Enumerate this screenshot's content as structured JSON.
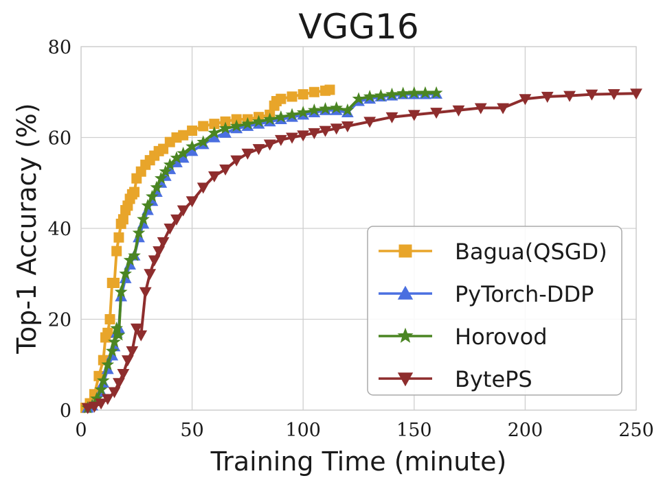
{
  "chart_data": {
    "type": "line",
    "title": "VGG16",
    "xlabel": "Training Time (minute)",
    "ylabel": "Top-1 Accuracy (%)",
    "xlim": [
      0,
      250
    ],
    "ylim": [
      0,
      80
    ],
    "xticks": [
      0,
      50,
      100,
      150,
      200,
      250
    ],
    "yticks": [
      0,
      20,
      40,
      60,
      80
    ],
    "grid": true,
    "legend_position": "lower-right",
    "series": [
      {
        "name": "Bagua(QSGD)",
        "color": "#E8A52A",
        "marker": "square",
        "x": [
          2,
          4,
          6,
          8,
          10,
          11,
          12,
          13,
          14,
          15,
          16,
          17,
          18,
          19,
          20,
          21,
          22,
          23,
          24,
          25,
          27,
          29,
          31,
          33,
          35,
          37,
          40,
          43,
          46,
          50,
          55,
          60,
          65,
          70,
          75,
          80,
          85,
          87,
          88,
          90,
          95,
          100,
          105,
          110,
          112
        ],
        "y": [
          0.5,
          1.5,
          3.5,
          7.5,
          11,
          16,
          17,
          20,
          28,
          28,
          35,
          38,
          41,
          42,
          44,
          45,
          46.5,
          47.5,
          48,
          51,
          52.5,
          54,
          55,
          56,
          57,
          57.5,
          59,
          60,
          60.5,
          61.5,
          62.5,
          63,
          63.5,
          64,
          64,
          64.5,
          65,
          67,
          68,
          68.5,
          69,
          69.5,
          70,
          70.3,
          70.5
        ]
      },
      {
        "name": "PyTorch-DDP",
        "color": "#4A6FE0",
        "marker": "triangle-up",
        "x": [
          3,
          5,
          7,
          9,
          10,
          12,
          14,
          15,
          16,
          17,
          18,
          20,
          22,
          24,
          26,
          28,
          30,
          32,
          34,
          36,
          38,
          40,
          43,
          46,
          50,
          55,
          60,
          65,
          70,
          75,
          80,
          85,
          90,
          95,
          100,
          105,
          110,
          115,
          120,
          125,
          130,
          135,
          140,
          145,
          150,
          155,
          160
        ],
        "y": [
          0.5,
          1,
          2,
          4,
          6,
          9,
          12,
          14,
          17,
          18,
          25,
          29,
          32,
          34,
          38,
          41,
          44,
          46,
          48,
          50,
          51.5,
          53,
          54.5,
          55.5,
          57,
          58.5,
          60,
          61,
          62,
          62.5,
          63,
          63.5,
          64,
          64.5,
          65,
          65.5,
          66,
          66,
          65.5,
          68,
          68.5,
          69,
          69.2,
          69.5,
          69.5,
          69.5,
          69.6
        ]
      },
      {
        "name": "Horovod",
        "color": "#4A8522",
        "marker": "star",
        "x": [
          3,
          5,
          7,
          9,
          10,
          12,
          14,
          15,
          16,
          17,
          18,
          20,
          22,
          24,
          26,
          28,
          30,
          32,
          34,
          36,
          38,
          40,
          43,
          46,
          50,
          55,
          60,
          65,
          70,
          75,
          80,
          85,
          90,
          95,
          100,
          105,
          110,
          115,
          120,
          125,
          130,
          135,
          140,
          145,
          150,
          155,
          160
        ],
        "y": [
          0.5,
          1,
          2.5,
          4.5,
          6.5,
          10,
          13,
          15,
          18,
          16.5,
          26,
          30,
          33,
          34,
          39,
          42,
          45,
          47,
          49,
          51,
          52.5,
          54,
          55.5,
          56.5,
          58,
          59,
          61,
          62,
          62.5,
          63,
          63.5,
          64,
          64.5,
          65,
          65.5,
          66,
          66.3,
          66.5,
          66,
          68.5,
          69,
          69.2,
          69.5,
          69.7,
          69.8,
          69.8,
          69.8
        ]
      },
      {
        "name": "BytePS",
        "color": "#8E2D2D",
        "marker": "triangle-down",
        "x": [
          3,
          6,
          9,
          12,
          15,
          17,
          19,
          21,
          23,
          25,
          27,
          29,
          31,
          33,
          35,
          37,
          40,
          43,
          46,
          50,
          55,
          60,
          65,
          70,
          75,
          80,
          85,
          90,
          95,
          100,
          105,
          110,
          115,
          120,
          130,
          140,
          150,
          160,
          170,
          180,
          190,
          200,
          210,
          220,
          230,
          240,
          250
        ],
        "y": [
          0.5,
          0.8,
          1.5,
          2.5,
          4,
          6,
          8,
          11,
          13,
          18,
          16.5,
          26,
          30,
          33,
          35,
          37,
          40,
          42,
          44,
          46,
          49,
          51.5,
          53,
          55,
          56.5,
          57.5,
          58.5,
          59.5,
          60,
          60.5,
          61,
          61.5,
          62,
          62.5,
          63.5,
          64.5,
          65,
          65.5,
          66,
          66.5,
          66.5,
          68.5,
          69,
          69.2,
          69.5,
          69.6,
          69.7
        ]
      }
    ]
  }
}
